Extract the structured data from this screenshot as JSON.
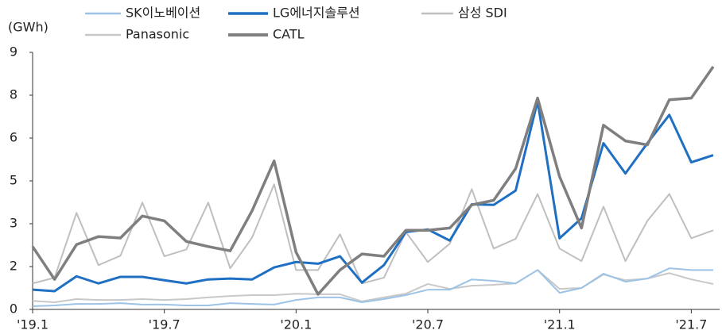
{
  "chart_data": {
    "type": "line",
    "y_axis_label": "(GWh)",
    "categories": [
      "'19.1",
      null,
      null,
      null,
      null,
      null,
      "'19.7",
      null,
      null,
      null,
      null,
      null,
      "'20.1",
      null,
      null,
      null,
      null,
      null,
      "'20.7",
      null,
      null,
      null,
      null,
      null,
      "'21.1",
      null,
      null,
      null,
      null,
      null,
      "'21.7",
      null
    ],
    "ylim": [
      0,
      9
    ],
    "yticks": [
      0,
      {
        "value": 1.5,
        "label": "2"
      },
      3,
      {
        "value": 4.5,
        "label": "5"
      },
      6,
      {
        "value": 7.5,
        "label": "8"
      },
      9
    ],
    "legend": "top",
    "series": [
      {
        "name": "SK이노베이션",
        "color": "#9dc3e6",
        "values": [
          0.11,
          0.14,
          0.19,
          0.19,
          0.22,
          0.17,
          0.17,
          0.14,
          0.14,
          0.22,
          0.19,
          0.17,
          0.33,
          0.42,
          0.42,
          0.25,
          0.36,
          0.5,
          0.69,
          0.69,
          1.05,
          1.0,
          0.91,
          1.38,
          0.58,
          0.75,
          1.25,
          0.97,
          1.08,
          1.44,
          1.38,
          1.38
        ]
      },
      {
        "name": "LG에너지솔루션",
        "color": "#1f6fc2",
        "values": [
          0.69,
          0.64,
          1.16,
          0.91,
          1.14,
          1.14,
          1.02,
          0.91,
          1.05,
          1.08,
          1.05,
          1.47,
          1.66,
          1.6,
          1.86,
          0.94,
          1.55,
          2.71,
          2.8,
          2.41,
          3.68,
          3.66,
          4.16,
          7.29,
          2.49,
          3.19,
          5.82,
          4.76,
          5.82,
          6.81,
          5.15,
          5.4
        ]
      },
      {
        "name": "삼성 SDI",
        "color": "#bfbfbf",
        "values": [
          0.91,
          1.11,
          3.38,
          1.55,
          1.88,
          3.74,
          1.86,
          2.1,
          3.74,
          1.44,
          2.52,
          4.38,
          1.38,
          1.38,
          2.63,
          0.91,
          1.11,
          2.71,
          1.66,
          2.3,
          4.21,
          2.13,
          2.47,
          4.04,
          2.13,
          1.69,
          3.6,
          1.69,
          3.1,
          4.04,
          2.49,
          2.77
        ]
      },
      {
        "name": "Panasonic",
        "color": "#c8c8c8",
        "values": [
          0.3,
          0.25,
          0.36,
          0.33,
          0.33,
          0.36,
          0.33,
          0.36,
          0.42,
          0.47,
          0.5,
          0.5,
          0.55,
          0.53,
          0.53,
          0.28,
          0.42,
          0.55,
          0.89,
          0.72,
          0.83,
          0.86,
          0.91,
          1.38,
          0.72,
          0.75,
          1.22,
          1.02,
          1.08,
          1.27,
          1.05,
          0.89
        ]
      },
      {
        "name": "CATL",
        "color": "#7f7f7f",
        "values": [
          2.2,
          1.05,
          2.27,
          2.55,
          2.5,
          3.27,
          3.1,
          2.38,
          2.2,
          2.05,
          3.46,
          5.2,
          2.0,
          0.53,
          1.38,
          1.94,
          1.86,
          2.77,
          2.77,
          2.85,
          3.66,
          3.82,
          4.93,
          7.4,
          4.65,
          2.85,
          6.45,
          5.9,
          5.76,
          7.34,
          7.4,
          8.5
        ]
      }
    ]
  }
}
